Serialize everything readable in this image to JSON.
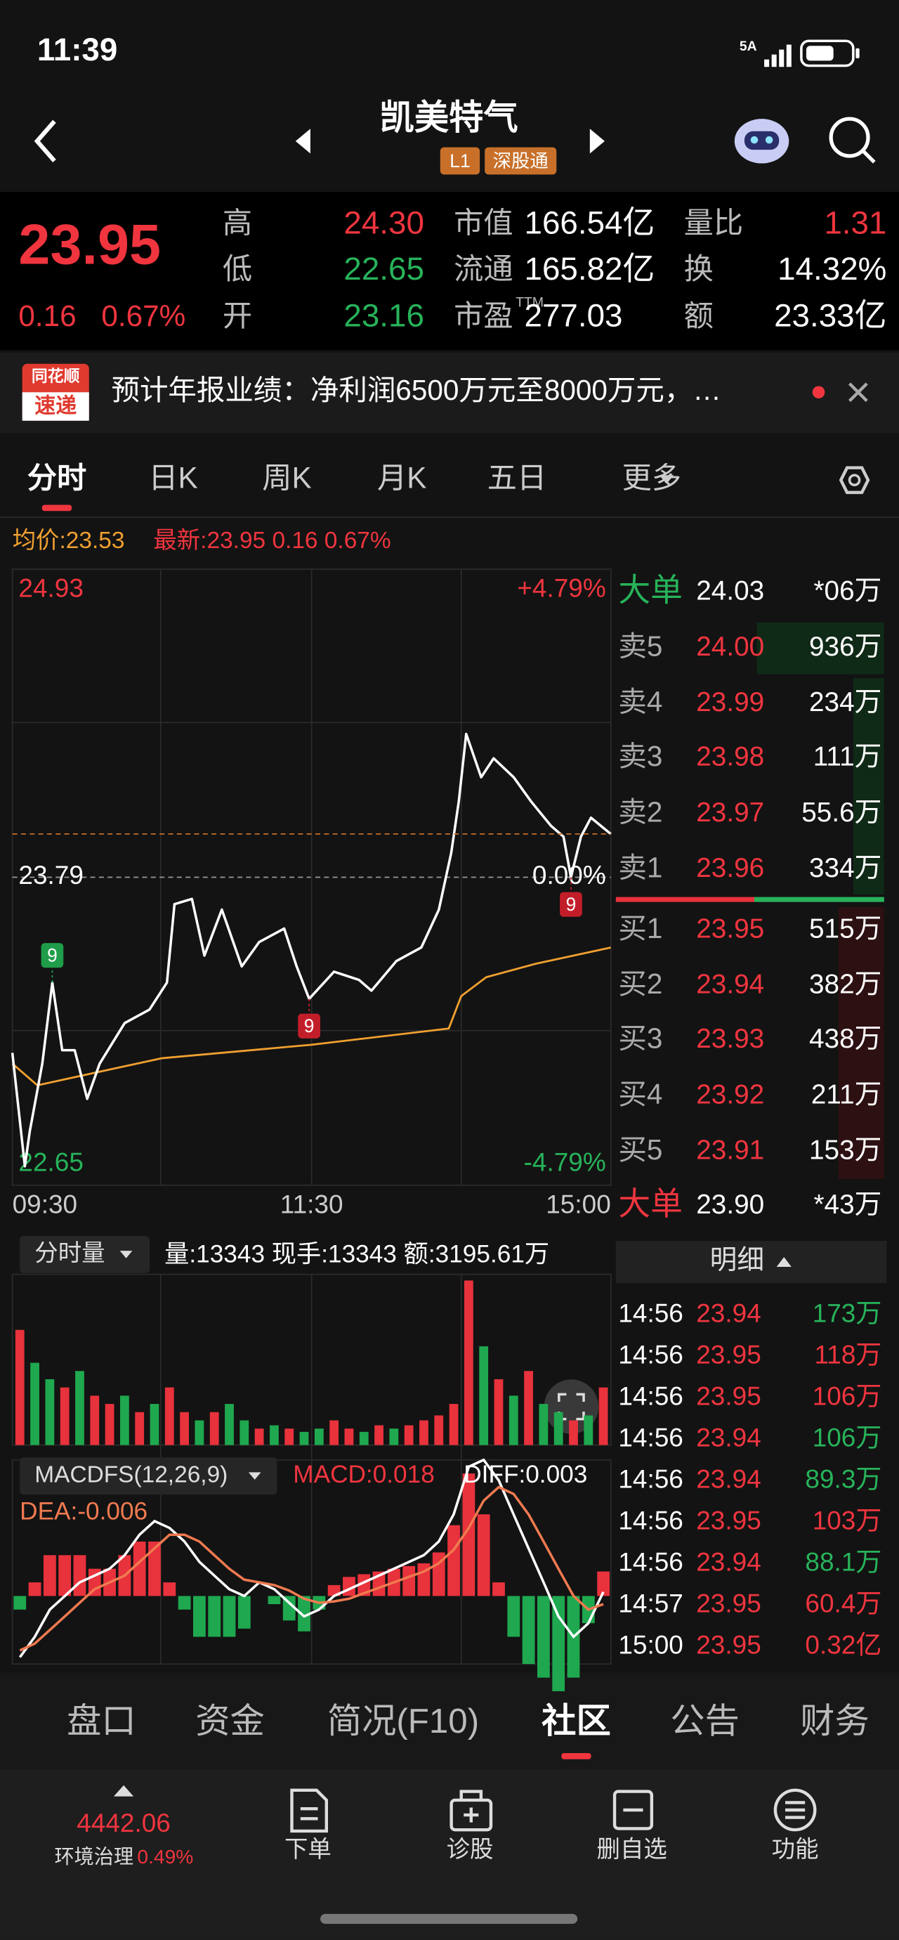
{
  "status": {
    "time": "11:39",
    "network": "5A"
  },
  "header": {
    "title": "凯美特气",
    "tags": [
      "L1",
      "深股通"
    ]
  },
  "quote": {
    "price": "23.95",
    "change": "0.16",
    "change_pct": "0.67%",
    "stats": [
      [
        {
          "label": "高",
          "value": "24.30",
          "color": "#f0353f"
        },
        {
          "label": "低",
          "value": "22.65",
          "color": "#27b35a"
        },
        {
          "label": "开",
          "value": "23.16",
          "color": "#27b35a"
        }
      ],
      [
        {
          "label": "市值",
          "value": "166.54亿",
          "color": "#ffffff"
        },
        {
          "label": "流通",
          "value": "165.82亿",
          "color": "#ffffff"
        },
        {
          "label": "市盈",
          "sup": "TTM",
          "value": "277.03",
          "color": "#ffffff"
        }
      ],
      [
        {
          "label": "量比",
          "value": "1.31",
          "color": "#f0353f"
        },
        {
          "label": "换",
          "value": "14.32%",
          "color": "#ffffff"
        },
        {
          "label": "额",
          "value": "23.33亿",
          "color": "#ffffff"
        }
      ]
    ]
  },
  "news": {
    "badge": [
      "同花顺",
      "速递"
    ],
    "text": "预计年报业绩：净利润6500万元至8000万元，…"
  },
  "tabs": {
    "items": [
      "分时",
      "日K",
      "周K",
      "月K",
      "五日",
      "更多"
    ],
    "active": 0
  },
  "chart_info": {
    "avg": "均价:23.53",
    "latest": "最新:23.95 0.16 0.67%"
  },
  "chart_data": [
    {
      "type": "line",
      "xlim": [
        0,
        240
      ],
      "xticks": [
        {
          "value": 0,
          "label": "09:30"
        },
        {
          "value": 120,
          "label": "11:30"
        },
        {
          "value": 240,
          "label": "15:00"
        }
      ],
      "ylim": [
        22.65,
        24.93
      ],
      "yticks": [
        24.93,
        23.79,
        22.65
      ],
      "y2lim": [
        -4.79,
        4.79
      ],
      "y2ticks": [
        {
          "value": 4.79,
          "label": "+4.79%"
        },
        {
          "value": 0,
          "label": "0.00%"
        },
        {
          "value": -4.79,
          "label": "-4.79%"
        }
      ],
      "series": [
        {
          "color": "#f0a030",
          "x": [
            0,
            10,
            30,
            60,
            120,
            175,
            180,
            190,
            210,
            240
          ],
          "values": [
            23.1,
            23.02,
            23.06,
            23.12,
            23.17,
            23.23,
            23.35,
            23.42,
            23.47,
            23.53
          ]
        },
        {
          "color": "#ffffff",
          "x": [
            0,
            5,
            7,
            12,
            16,
            20,
            25,
            30,
            35,
            45,
            55,
            62,
            65,
            72,
            77,
            84,
            92,
            99,
            109,
            114,
            119,
            129,
            139,
            144,
            154,
            164,
            171,
            176,
            179,
            182,
            188,
            193,
            201,
            208,
            216,
            221,
            224,
            228,
            232,
            240
          ],
          "values": [
            23.14,
            22.72,
            22.85,
            23.1,
            23.4,
            23.15,
            23.15,
            22.97,
            23.1,
            23.25,
            23.3,
            23.4,
            23.69,
            23.71,
            23.5,
            23.67,
            23.46,
            23.55,
            23.6,
            23.46,
            23.34,
            23.44,
            23.41,
            23.37,
            23.48,
            23.53,
            23.67,
            23.88,
            24.07,
            24.32,
            24.16,
            24.23,
            24.16,
            24.07,
            23.98,
            23.94,
            23.79,
            23.94,
            24.01,
            23.95
          ]
        }
      ],
      "annotations": [
        {
          "text": "9",
          "x": 16,
          "y": 23.4,
          "color": "#1f9d4a",
          "position": "above"
        },
        {
          "text": "9",
          "x": 119,
          "y": 23.34,
          "color": "#c21e2a",
          "position": "below"
        },
        {
          "text": "9",
          "x": 224,
          "y": 23.79,
          "color": "#c21e2a",
          "position": "below"
        }
      ]
    },
    {
      "type": "bar",
      "toolbar": {
        "selector": "分时量",
        "info": "量:13343  现手:13343  额:3195.61万"
      },
      "ylim": [
        0,
        100
      ],
      "values": [
        70,
        50,
        40,
        35,
        45,
        30,
        25,
        30,
        20,
        25,
        35,
        20,
        15,
        20,
        25,
        15,
        10,
        12,
        10,
        8,
        10,
        15,
        10,
        8,
        12,
        10,
        12,
        15,
        18,
        25,
        100,
        60,
        40,
        30,
        45,
        25,
        20,
        15,
        18,
        35
      ],
      "colors": [
        "#e8323c",
        "#1fa84f",
        "#1fa84f",
        "#e8323c",
        "#1fa84f",
        "#e8323c",
        "#e8323c",
        "#1fa84f",
        "#e8323c",
        "#1fa84f",
        "#e8323c",
        "#e8323c",
        "#1fa84f",
        "#e8323c",
        "#1fa84f",
        "#1fa84f",
        "#e8323c",
        "#1fa84f",
        "#e8323c",
        "#1fa84f",
        "#1fa84f",
        "#e8323c",
        "#e8323c",
        "#1fa84f",
        "#e8323c",
        "#1fa84f",
        "#e8323c",
        "#e8323c",
        "#e8323c",
        "#e8323c",
        "#e8323c",
        "#1fa84f",
        "#e8323c",
        "#1fa84f",
        "#e8323c",
        "#1fa84f",
        "#1fa84f",
        "#e8323c",
        "#1fa84f",
        "#e8323c"
      ]
    },
    {
      "type": "macd",
      "toolbar": {
        "selector": "MACDFS(12,26,9)",
        "macd": "MACD:0.018",
        "diff": "DIFF:0.003",
        "dea": "DEA:-0.006"
      },
      "ylim": [
        -0.05,
        0.1
      ],
      "up_color": "#e8323c",
      "down_color": "#1fa84f",
      "histogram": [
        -0.01,
        0.01,
        0.03,
        0.03,
        0.03,
        0.02,
        0.02,
        0.03,
        0.04,
        0.04,
        0.01,
        -0.01,
        -0.03,
        -0.03,
        -0.03,
        -0.024,
        0.0,
        -0.006,
        -0.018,
        -0.026,
        -0.01,
        0.008,
        0.014,
        0.016,
        0.018,
        0.02,
        0.022,
        0.024,
        0.032,
        0.052,
        0.09,
        0.06,
        0.01,
        -0.03,
        -0.05,
        -0.06,
        -0.07,
        -0.06,
        -0.02,
        0.018
      ],
      "series": [
        {
          "color": "#ffffff",
          "values": [
            -0.045,
            -0.03,
            -0.01,
            0.0,
            0.01,
            0.015,
            0.02,
            0.03,
            0.045,
            0.055,
            0.05,
            0.04,
            0.025,
            0.015,
            0.005,
            0.0,
            0.01,
            0.005,
            -0.005,
            -0.015,
            -0.01,
            0.0,
            0.005,
            0.01,
            0.015,
            0.02,
            0.025,
            0.03,
            0.04,
            0.06,
            0.095,
            0.1,
            0.085,
            0.06,
            0.035,
            0.01,
            -0.015,
            -0.03,
            -0.02,
            0.003
          ]
        },
        {
          "color": "#f07a50",
          "values": [
            -0.04,
            -0.035,
            -0.025,
            -0.015,
            -0.005,
            0.005,
            0.01,
            0.015,
            0.025,
            0.035,
            0.045,
            0.045,
            0.04,
            0.03,
            0.02,
            0.012,
            0.01,
            0.008,
            0.004,
            -0.002,
            -0.005,
            -0.004,
            -0.002,
            0.002,
            0.006,
            0.01,
            0.014,
            0.018,
            0.024,
            0.034,
            0.05,
            0.07,
            0.08,
            0.075,
            0.06,
            0.04,
            0.02,
            0.0,
            -0.01,
            -0.006
          ]
        }
      ]
    }
  ],
  "order_book": {
    "rows": [
      {
        "label": "大单",
        "price": "24.03",
        "volume": "*06万",
        "label_color": "#27b35a",
        "price_color": "#ffffff"
      },
      {
        "label": "卖5",
        "price": "24.00",
        "volume": "936万"
      },
      {
        "label": "卖4",
        "price": "23.99",
        "volume": "234万"
      },
      {
        "label": "卖3",
        "price": "23.98",
        "volume": "111万"
      },
      {
        "label": "卖2",
        "price": "23.97",
        "volume": "55.6万"
      },
      {
        "label": "卖1",
        "price": "23.96",
        "volume": "334万"
      },
      {
        "label": "买1",
        "price": "23.95",
        "volume": "515万"
      },
      {
        "label": "买2",
        "price": "23.94",
        "volume": "382万"
      },
      {
        "label": "买3",
        "price": "23.93",
        "volume": "438万"
      },
      {
        "label": "买4",
        "price": "23.92",
        "volume": "211万"
      },
      {
        "label": "买5",
        "price": "23.91",
        "volume": "153万"
      },
      {
        "label": "大单",
        "price": "23.90",
        "volume": "*43万",
        "label_color": "#f0353f",
        "price_color": "#ffffff"
      }
    ]
  },
  "trades": {
    "title": "明细",
    "rows": [
      {
        "time": "14:56",
        "price": "23.94",
        "volume": "173万",
        "color": "#27b35a"
      },
      {
        "time": "14:56",
        "price": "23.95",
        "volume": "118万",
        "color": "#f0353f"
      },
      {
        "time": "14:56",
        "price": "23.95",
        "volume": "106万",
        "color": "#f0353f"
      },
      {
        "time": "14:56",
        "price": "23.94",
        "volume": "106万",
        "color": "#27b35a"
      },
      {
        "time": "14:56",
        "price": "23.94",
        "volume": "89.3万",
        "color": "#27b35a"
      },
      {
        "time": "14:56",
        "price": "23.95",
        "volume": "103万",
        "color": "#f0353f"
      },
      {
        "time": "14:56",
        "price": "23.94",
        "volume": "88.1万",
        "color": "#27b35a"
      },
      {
        "time": "14:57",
        "price": "23.95",
        "volume": "60.4万",
        "color": "#f0353f"
      },
      {
        "time": "15:00",
        "price": "23.95",
        "volume": "0.32亿",
        "color": "#f0353f"
      }
    ]
  },
  "section_tabs": {
    "items": [
      "盘口",
      "资金",
      "简况(F10)",
      "社区",
      "公告",
      "财务"
    ],
    "active": 3
  },
  "bottom_nav": {
    "index_value": "4442.06",
    "index_name": "环境治理",
    "index_change": "0.49%",
    "items": [
      "下单",
      "诊股",
      "删自选",
      "功能"
    ]
  }
}
